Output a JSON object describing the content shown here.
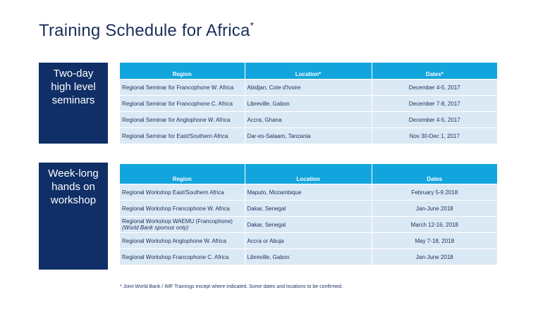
{
  "title": "Training Schedule for Africa",
  "title_mark": "*",
  "colors": {
    "navy": "#0f2f66",
    "header_blue": "#12a5dd",
    "row_bg": "#dbe9f5"
  },
  "seminars": {
    "side_label": [
      "Two-day",
      "high level",
      "seminars"
    ],
    "headers": {
      "region": "Region",
      "location": "Location*",
      "dates": "Dates*"
    },
    "rows": [
      {
        "region": "Regional Seminar for Francophone W. Africa",
        "location": "Abidjan, Cote d'Ivoire",
        "dates": "December 4-5, 2017"
      },
      {
        "region": "Regional Seminar for Francophone C. Africa",
        "location": "Libreville, Gabon",
        "dates": "December 7-8, 2017"
      },
      {
        "region": "Regional Seminar for Anglophone W. Africa",
        "location": "Accra, Ghana",
        "dates": "December 4-5, 2017"
      },
      {
        "region": "Regional Seminar for East/Southern Africa",
        "location": "Dar-es-Salaam, Tanzania",
        "dates": "Nov 30-Dec 1, 2017"
      }
    ]
  },
  "workshops": {
    "side_label": [
      "Week-long",
      "hands on",
      "workshop"
    ],
    "headers": {
      "region": "Region",
      "location": "Location",
      "dates": "Dates"
    },
    "rows": [
      {
        "region": "Regional Workshop East/Southern Africa",
        "region_note": "",
        "location": "Maputo, Mozambique",
        "dates": "February 5-9 2018"
      },
      {
        "region": "Regional Workshop Francophone W. Africa",
        "region_note": "",
        "location": "Dakar, Senegal",
        "dates": "Jan-June 2018"
      },
      {
        "region": "Regional Workshop WAEMU (Francophone)",
        "region_note": "(World Bank sponsor only)",
        "location": "Dakar, Senegal",
        "dates": "March 12-16, 2018"
      },
      {
        "region": "Regional Workshop Anglophone W. Africa",
        "region_note": "",
        "location": "Accra or Abuja",
        "dates": "May 7-18, 2018"
      },
      {
        "region": "Regional Workshop Francophone C. Africa",
        "region_note": "",
        "location": "Libreville, Gabon",
        "dates": "Jan-June 2018"
      }
    ]
  },
  "footnote": "* Joint World Bank / IMF Trainings except where indicated.  Some dates and locations to be confirmed."
}
